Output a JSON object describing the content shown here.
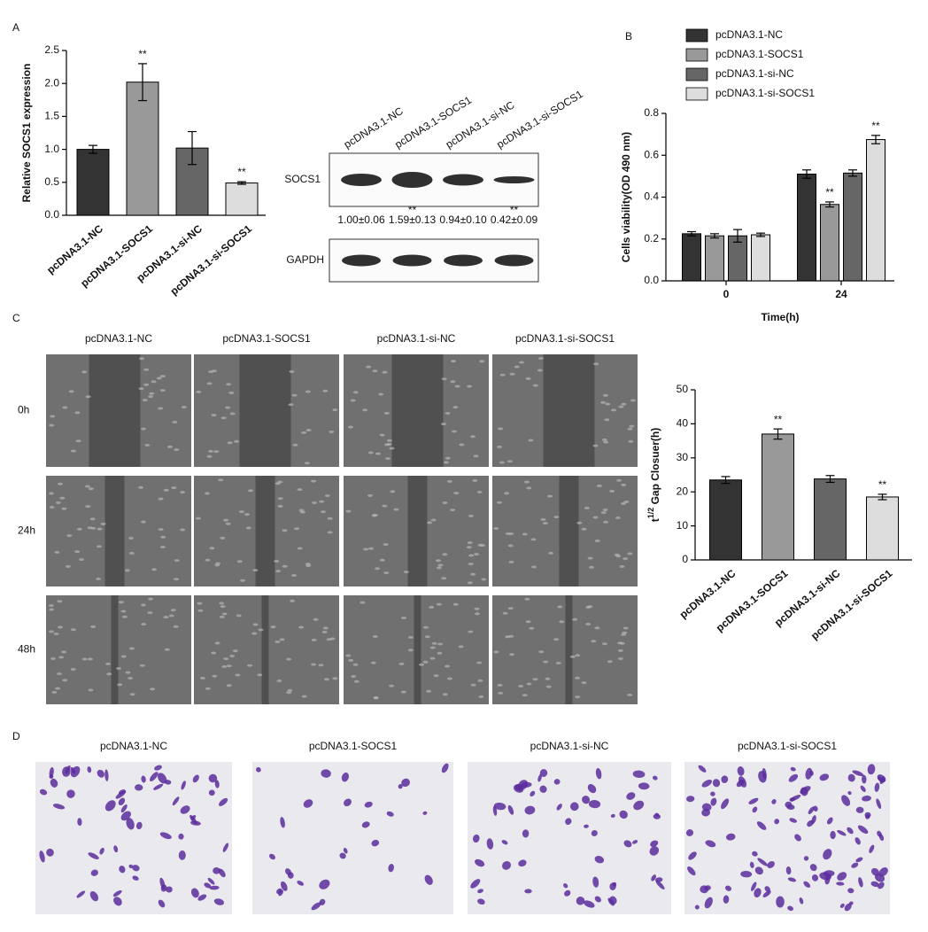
{
  "panel_labels": [
    "A",
    "B",
    "C",
    "D"
  ],
  "chart_data": [
    {
      "type": "bar",
      "ylabel": "Relative SOCS1 expression",
      "categories": [
        "pcDNA3.1-NC",
        "pcDNA3.1-SOCS1",
        "pcDNA3.1-si-NC",
        "pcDNA3.1-si-SOCS1"
      ],
      "values": [
        1.0,
        2.02,
        1.02,
        0.49
      ],
      "errors": [
        0.06,
        0.28,
        0.25,
        0.02
      ],
      "significance": [
        null,
        "**",
        null,
        "**"
      ],
      "colors": [
        "#333333",
        "#999999",
        "#666666",
        "#dddddd"
      ],
      "ylim": [
        0,
        2.5
      ],
      "yticks": [
        {
          "value": 0,
          "label": "0.0"
        },
        0.5,
        {
          "value": 1,
          "label": "1.0"
        },
        1.5,
        {
          "value": 2,
          "label": "2.0"
        },
        2.5
      ]
    },
    {
      "type": "bar",
      "ylabel": "Cells viability(OD 490 nm)",
      "xlabel": "Time(h)",
      "categories": [
        "0",
        "24"
      ],
      "series": [
        {
          "name": "pcDNA3.1-NC",
          "color": "#333333",
          "values": [
            0.225,
            0.51
          ],
          "errors": [
            0.01,
            0.02
          ],
          "significance": [
            null,
            null
          ]
        },
        {
          "name": "pcDNA3.1-SOCS1",
          "color": "#999999",
          "values": [
            0.215,
            0.365
          ],
          "errors": [
            0.01,
            0.012
          ],
          "significance": [
            null,
            "**"
          ]
        },
        {
          "name": "pcDNA3.1-si-NC",
          "color": "#666666",
          "values": [
            0.215,
            0.515
          ],
          "errors": [
            0.03,
            0.015
          ],
          "significance": [
            null,
            null
          ]
        },
        {
          "name": "pcDNA3.1-si-SOCS1",
          "color": "#dddddd",
          "values": [
            0.22,
            0.675
          ],
          "errors": [
            0.008,
            0.02
          ],
          "significance": [
            null,
            "**"
          ]
        }
      ],
      "ylim": [
        0,
        0.8
      ],
      "yticks": [
        {
          "value": 0,
          "label": "0.0"
        },
        0.2,
        0.4,
        0.6,
        0.8
      ],
      "legend": "top"
    },
    {
      "type": "bar",
      "ylabel": {
        "base": "t",
        "sup": "1/2",
        "rest": " Gap Closuer(h)"
      },
      "categories": [
        "pcDNA3.1-NC",
        "pcDNA3.1-SOCS1",
        "pcDNA3.1-si-NC",
        "pcDNA3.1-si-SOCS1"
      ],
      "values": [
        23.5,
        37,
        23.8,
        18.5
      ],
      "errors": [
        1,
        1.5,
        1,
        0.8
      ],
      "significance": [
        null,
        "**",
        null,
        "**"
      ],
      "colors": [
        "#333333",
        "#999999",
        "#666666",
        "#dddddd"
      ],
      "ylim": [
        0,
        50
      ],
      "yticks": [
        0,
        10,
        20,
        30,
        40,
        50
      ]
    }
  ],
  "western_blot": {
    "lanes": [
      "pcDNA3.1-NC",
      "pcDNA3.1-SOCS1",
      "pcDNA3.1-si-NC",
      "pcDNA3.1-si-SOCS1"
    ],
    "rows": [
      "SOCS1",
      "GAPDH"
    ],
    "quantification": [
      "1.00±0.06",
      "1.59±0.13",
      "0.94±0.10",
      "0.42±0.09"
    ],
    "significance": [
      null,
      "**",
      null,
      "**"
    ]
  },
  "wound_healing": {
    "columns": [
      "pcDNA3.1-NC",
      "pcDNA3.1-SOCS1",
      "pcDNA3.1-si-NC",
      "pcDNA3.1-si-SOCS1"
    ],
    "rows": [
      "0h",
      "24h",
      "48h"
    ]
  },
  "transwell": {
    "columns": [
      "pcDNA3.1-NC",
      "pcDNA3.1-SOCS1",
      "pcDNA3.1-si-NC",
      "pcDNA3.1-si-SOCS1"
    ]
  }
}
